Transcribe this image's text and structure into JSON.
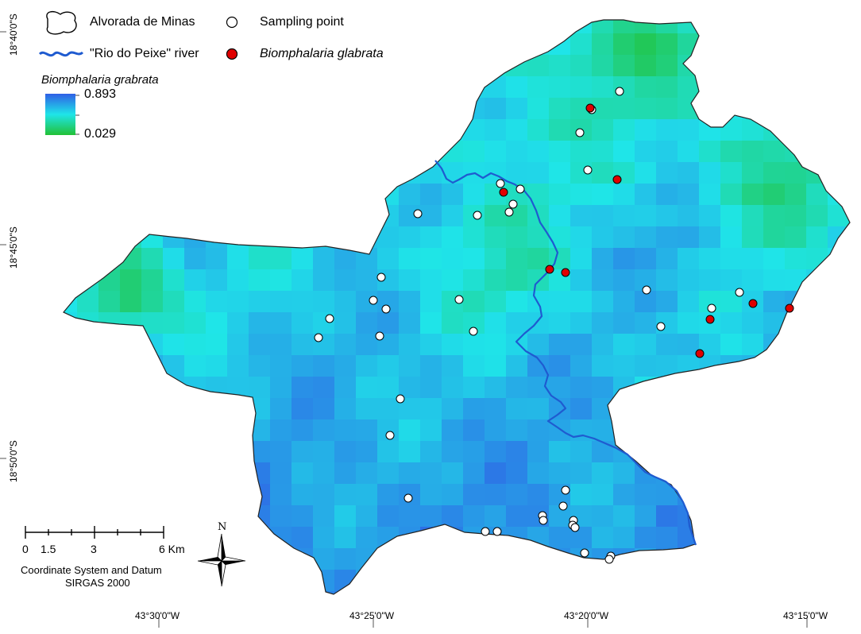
{
  "legend": {
    "boundary_label": "Alvorada de Minas",
    "river_label": "\"Rio do Peixe\" river",
    "sampling_label": "Sampling point",
    "species_label": "Biomphalaria glabrata",
    "ramp_title": "Biomphalaria grabrata",
    "ramp_max": "0.893",
    "ramp_min": "0.029"
  },
  "colors": {
    "river": "#1f5bd0",
    "species_point": "#e00000",
    "sampling_point": "#ffffff",
    "ramp_high": "#2f5fe6",
    "ramp_mid": "#1fe5e8",
    "ramp_low": "#22c136"
  },
  "axes": {
    "lon_ticks": [
      "43°30'0\"W",
      "43°25'0\"W",
      "43°20'0\"W",
      "43°15'0\"W"
    ],
    "lat_ticks": [
      "18°40'0\"S",
      "18°45'0\"S",
      "18°50'0\"S"
    ]
  },
  "scale_bar": {
    "labels": [
      "0",
      "1.5",
      "3",
      "6 Km"
    ],
    "crs_line1": "Coordinate System and Datum",
    "crs_line2": "SIRGAS 2000"
  },
  "north_arrow": {
    "label": "N"
  }
}
